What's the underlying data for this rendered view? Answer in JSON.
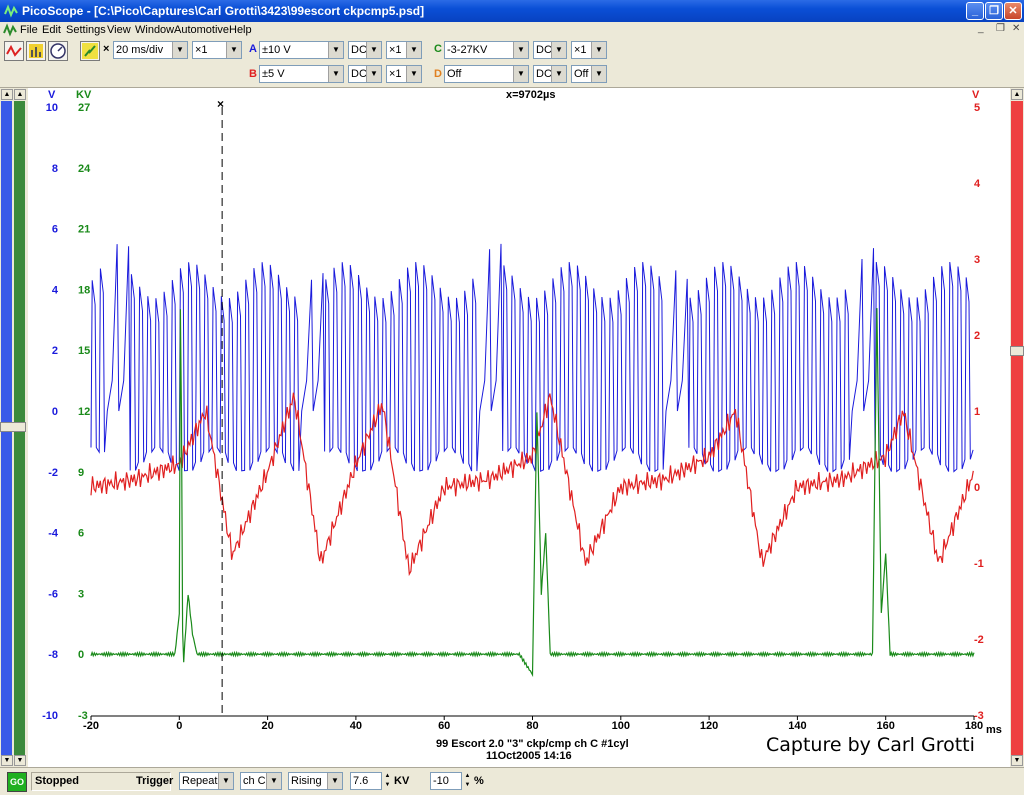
{
  "window": {
    "title": "PicoScope - [C:\\Pico\\Captures\\Carl Grotti\\3423\\99escort ckpcmp5.psd]",
    "minimize": "_",
    "restore": "❐",
    "close": "✕"
  },
  "menubar": {
    "items": [
      "File",
      "Edit",
      "Settings",
      "View",
      "Window",
      "Automotive",
      "Help"
    ],
    "mdi_buttons": [
      "_",
      "❐",
      "✕"
    ]
  },
  "toolbar": {
    "timebase": "20 ms/div",
    "timebase_multiplier": "×1",
    "times_symbol": "×",
    "channels": [
      {
        "letter": "A",
        "color": "#1a1adc",
        "range": "±10 V",
        "coupling": "DC",
        "mult": "×1"
      },
      {
        "letter": "B",
        "color": "#e02020",
        "range": "±5 V",
        "coupling": "DC",
        "mult": "×1"
      },
      {
        "letter": "C",
        "color": "#1a8a1a",
        "range": "-3-27KV",
        "coupling": "DC",
        "mult": "×1"
      },
      {
        "letter": "D",
        "color": "#e08020",
        "range": "Off",
        "coupling": "DC",
        "mult": "Off"
      }
    ]
  },
  "plot": {
    "cursor_readout": "x=9702µs",
    "x_unit": "ms",
    "left_unit_v": "V",
    "left_unit_kv": "KV",
    "right_unit": "V",
    "caption_line1": "99 Escort 2.0 \"3\" ckp/cmp ch C #1cyl",
    "caption_line2": "11Oct2005  14:16",
    "watermark": "Capture by Carl Grotti",
    "cursor_marker": "×"
  },
  "chart_data": {
    "type": "line",
    "xlabel": "ms",
    "xlim": [
      -20,
      180
    ],
    "x_ticks": [
      -20,
      0,
      20,
      40,
      60,
      80,
      100,
      120,
      140,
      160,
      180
    ],
    "cursor_x": 9.702,
    "axes": {
      "A": {
        "unit": "V",
        "ticks": [
          10,
          8,
          6,
          4,
          2,
          0,
          -2,
          -4,
          -6,
          -8,
          -10
        ],
        "ylim": [
          -10,
          10
        ],
        "color": "#1a1adc"
      },
      "C": {
        "unit": "KV",
        "ticks": [
          27,
          24,
          21,
          18,
          15,
          12,
          9,
          6,
          3,
          0,
          -3
        ],
        "ylim": [
          -3,
          27
        ],
        "color": "#1a8a1a"
      },
      "B": {
        "unit": "V",
        "ticks": [
          5,
          4,
          3,
          2,
          1,
          0,
          -1,
          -2,
          -3
        ],
        "ylim": [
          -3,
          5
        ],
        "color": "#e02020"
      }
    },
    "series": [
      {
        "name": "A",
        "description_channel": "ckp",
        "axis": "A",
        "color": "#1a1adc",
        "x": [
          -20,
          180
        ],
        "y": [
          0.5,
          0.5
        ]
      },
      {
        "name": "B",
        "axis": "B",
        "color": "#e02020",
        "x": [
          -20,
          -10,
          0,
          6,
          12,
          20,
          26,
          32,
          40,
          46,
          52,
          60,
          70,
          80,
          84,
          92,
          100,
          110,
          120,
          126,
          132,
          140,
          150,
          160,
          164,
          172,
          180
        ],
        "y": [
          0.0,
          0.1,
          0.3,
          1.0,
          -0.9,
          0.2,
          1.2,
          -1.0,
          0.3,
          1.1,
          -1.1,
          0.0,
          0.1,
          0.4,
          1.2,
          -1.0,
          0.0,
          0.1,
          0.4,
          1.0,
          -1.0,
          0.0,
          0.1,
          0.4,
          1.0,
          -1.0,
          0.2
        ]
      },
      {
        "name": "C",
        "axis": "C",
        "color": "#1a8a1a",
        "x": [
          -20,
          -1,
          0,
          0.3,
          0.8,
          2,
          3,
          4,
          20,
          40,
          60,
          77,
          80,
          81,
          82,
          83,
          84,
          100,
          120,
          140,
          155,
          157,
          158,
          159,
          160,
          161,
          180
        ],
        "y": [
          0,
          0,
          2,
          20,
          -1,
          3,
          1,
          0,
          0,
          0,
          0,
          0,
          -1,
          12,
          3,
          6,
          0,
          0,
          0,
          0,
          0,
          0,
          17,
          2,
          5,
          0,
          0
        ]
      }
    ]
  },
  "statusbar": {
    "go_button": "GO",
    "status": "Stopped",
    "trigger_label": "Trigger",
    "trigger_mode": "Repeat",
    "trigger_channel": "ch C",
    "trigger_edge": "Rising",
    "trigger_level": "7.6",
    "trigger_unit": "KV",
    "pretrigger": "-10",
    "pretrigger_unit": "%"
  }
}
